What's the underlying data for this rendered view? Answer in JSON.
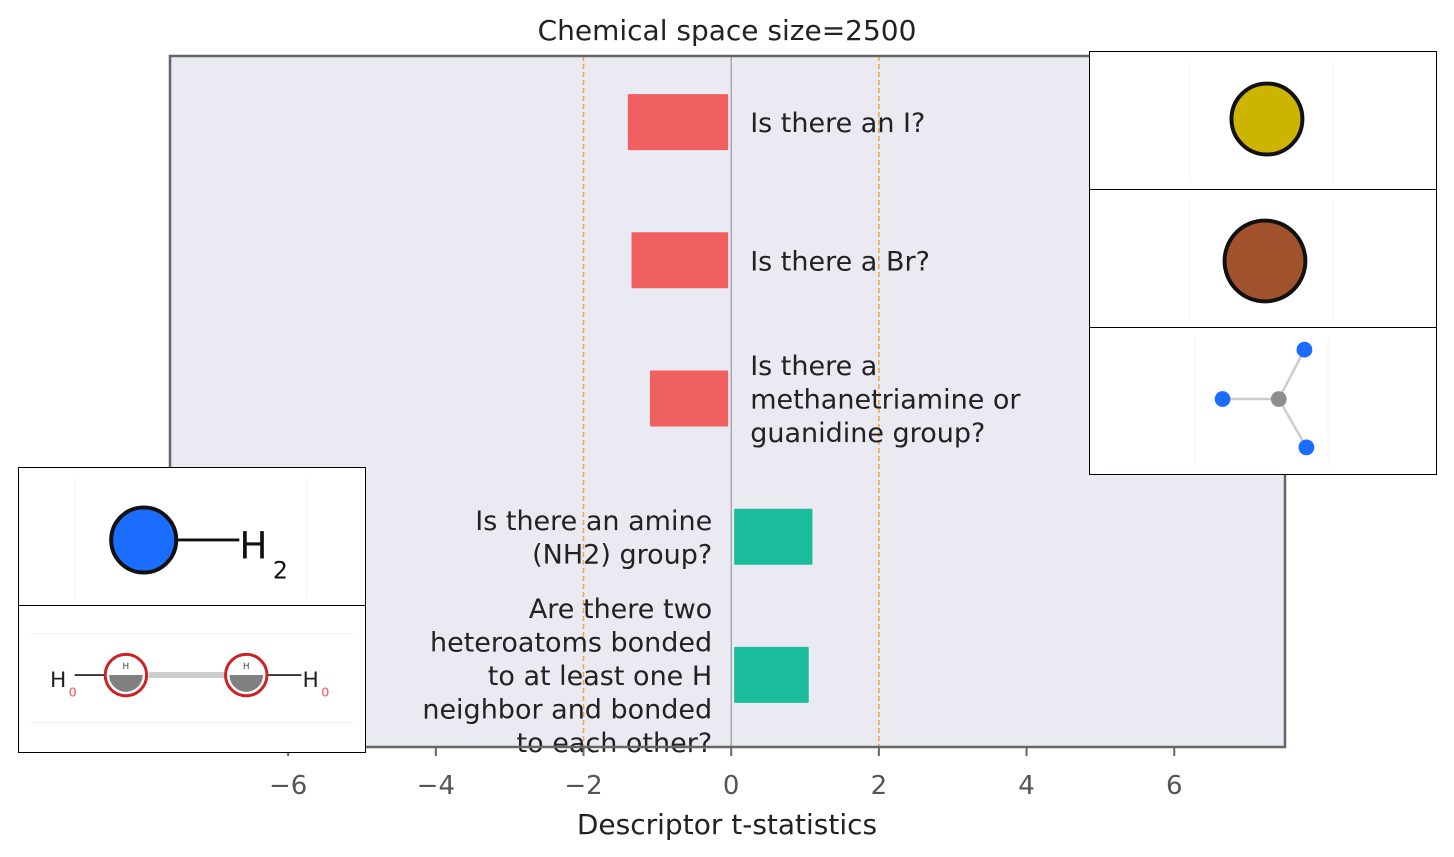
{
  "chart_data": {
    "type": "bar",
    "orientation": "horizontal",
    "title": "Chemical space size=2500",
    "xlabel": "Descriptor t-statistics",
    "ylabel": "",
    "xlim": [
      -7.6,
      7.5
    ],
    "xticks": [
      -6,
      -4,
      -2,
      0,
      2,
      4,
      6
    ],
    "xtick_labels": [
      "−6",
      "−4",
      "−2",
      "0",
      "2",
      "4",
      "6"
    ],
    "significance_lines": [
      -2,
      2
    ],
    "grid": false,
    "categories": [
      "Is there an I?",
      "Is there a Br?",
      "Is there a methanetriamine or guanidine group?",
      "Is there an amine (NH2) group?",
      "Are there two heteroatoms bonded to at least one H neighbor and bonded to each other?"
    ],
    "category_lines": [
      [
        "Is there an I?"
      ],
      [
        "Is there a Br?"
      ],
      [
        "Is there a",
        "methanetriamine or",
        "guanidine group?"
      ],
      [
        "Is there an amine",
        "(NH2) group?"
      ],
      [
        "Are there two",
        "heteroatoms bonded",
        "to at least one H",
        "neighbor and bonded",
        "to each other?"
      ]
    ],
    "values": [
      -1.4,
      -1.35,
      -1.1,
      1.1,
      1.05
    ],
    "colors": {
      "negative": "#f06060",
      "positive": "#1abc9c",
      "plot_bg": "#eaeaf2",
      "threshold": "#f4a340",
      "zero_line": "#888888",
      "frame": "#666666",
      "text": "#222222",
      "tick_text": "#555555"
    }
  },
  "insets": [
    {
      "icon": "iodine-atom-icon",
      "for": "Is there an I?",
      "color": "#ccb400"
    },
    {
      "icon": "bromine-atom-icon",
      "for": "Is there a Br?",
      "color": "#a0522d"
    },
    {
      "icon": "methanetriamine-fragment-icon",
      "for": "Is there a methanetriamine or guanidine group?",
      "color": "#1a6dff"
    },
    {
      "icon": "amine-group-icon",
      "for": "Is there an amine (NH2) group?",
      "color": "#1a6dff",
      "label_main": "H",
      "label_sub": "2"
    },
    {
      "icon": "heteroatom-pair-icon",
      "for": "Are there two heteroatoms bonded to at least one H neighbor and bonded to each other?",
      "color": "#cc2222",
      "label_main": "H",
      "label_sub": "0",
      "label_small": "H"
    }
  ]
}
